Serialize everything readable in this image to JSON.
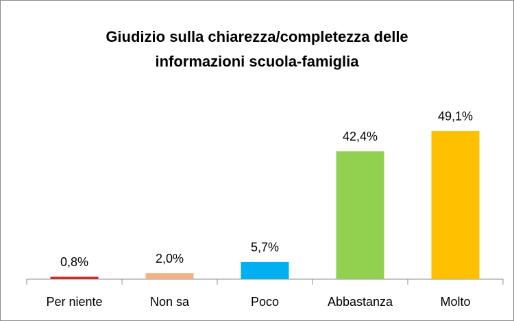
{
  "chart_data": {
    "type": "bar",
    "title": "Giudizio sulla chiarezza/completezza delle informazioni scuola-famiglia",
    "categories": [
      "Per niente",
      "Non sa",
      "Poco",
      "Abbastanza",
      "Molto"
    ],
    "values": [
      0.8,
      2.0,
      5.7,
      42.4,
      49.1
    ],
    "value_labels": [
      "0,8%",
      "2,0%",
      "5,7%",
      "42,4%",
      "49,1%"
    ],
    "colors": [
      "#d32a2a",
      "#f4b183",
      "#00b0f0",
      "#92d050",
      "#ffc000"
    ],
    "ylim": [
      0,
      60
    ]
  }
}
